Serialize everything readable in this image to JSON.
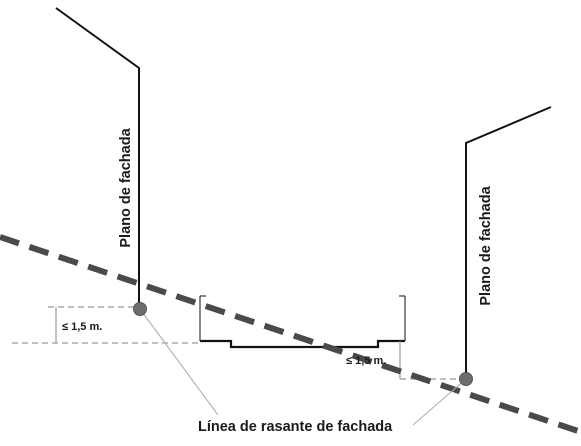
{
  "diagram": {
    "facade_plane_label": "Plano de fachada",
    "height_limit_label": "≤ 1,5 m.",
    "grade_line_label": "Línea de rasante de fachada",
    "colors": {
      "wall": "#111111",
      "grade_line": "#4a4a4a",
      "dimension": "#9a9a9a",
      "point": "#6e6e6e"
    }
  }
}
